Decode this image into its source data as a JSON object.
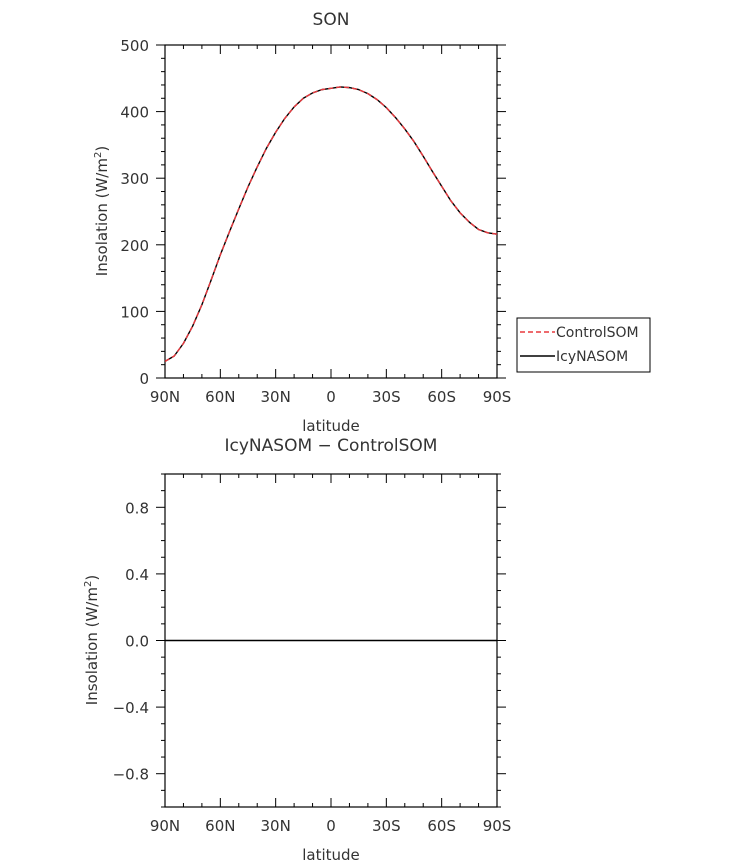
{
  "chart_data": [
    {
      "type": "line",
      "title": "SON",
      "xlabel": "latitude",
      "ylabel_main": "Insolation (W/m",
      "ylabel_sup": "2",
      "ylabel_tail": ")",
      "x": [
        -90,
        -85,
        -80,
        -75,
        -70,
        -65,
        -60,
        -55,
        -50,
        -45,
        -40,
        -35,
        -30,
        -25,
        -20,
        -15,
        -10,
        -5,
        0,
        5,
        10,
        15,
        20,
        25,
        30,
        35,
        40,
        45,
        50,
        55,
        60,
        65,
        70,
        75,
        80,
        85,
        90
      ],
      "xlim": [
        -90,
        90
      ],
      "ylim": [
        0,
        500
      ],
      "xticks": [
        -90,
        -60,
        -30,
        0,
        30,
        60,
        90
      ],
      "xtick_labels": [
        "90N",
        "60N",
        "30N",
        "0",
        "30S",
        "60S",
        "90S"
      ],
      "yticks": [
        0,
        100,
        200,
        300,
        400,
        500
      ],
      "ytick_labels": [
        "0",
        "100",
        "200",
        "300",
        "400",
        "500"
      ],
      "series": [
        {
          "name": "ControlSOM",
          "color": "#e8383d",
          "dash": true,
          "values": [
            25,
            33,
            52,
            78,
            110,
            147,
            185,
            220,
            254,
            287,
            317,
            345,
            369,
            390,
            407,
            420,
            428,
            433,
            435,
            437,
            436,
            433,
            427,
            418,
            406,
            391,
            374,
            355,
            333,
            310,
            288,
            266,
            248,
            234,
            223,
            218,
            216
          ]
        },
        {
          "name": "IcyNASOM",
          "color": "#000000",
          "dash": false,
          "values": [
            25,
            33,
            52,
            78,
            110,
            147,
            185,
            220,
            254,
            287,
            317,
            345,
            369,
            390,
            407,
            420,
            428,
            433,
            435,
            437,
            436,
            433,
            427,
            418,
            406,
            391,
            374,
            355,
            333,
            310,
            288,
            266,
            248,
            234,
            223,
            218,
            216
          ]
        }
      ],
      "legend_position": "right"
    },
    {
      "type": "line",
      "title": "IcyNASOM − ControlSOM",
      "xlabel": "latitude",
      "ylabel_main": "Insolation (W/m",
      "ylabel_sup": "2",
      "ylabel_tail": ")",
      "x": [
        -90,
        90
      ],
      "xlim": [
        -90,
        90
      ],
      "ylim": [
        -1,
        1
      ],
      "xticks": [
        -90,
        -60,
        -30,
        0,
        30,
        60,
        90
      ],
      "xtick_labels": [
        "90N",
        "60N",
        "30N",
        "0",
        "30S",
        "60S",
        "90S"
      ],
      "yticks": [
        -0.8,
        -0.4,
        0.0,
        0.4,
        0.8
      ],
      "ytick_labels": [
        "−0.8",
        "−0.4",
        "0.0",
        "0.4",
        "0.8"
      ],
      "series": [
        {
          "color": "#000000",
          "dash": false,
          "values": [
            0,
            0
          ]
        }
      ]
    }
  ]
}
